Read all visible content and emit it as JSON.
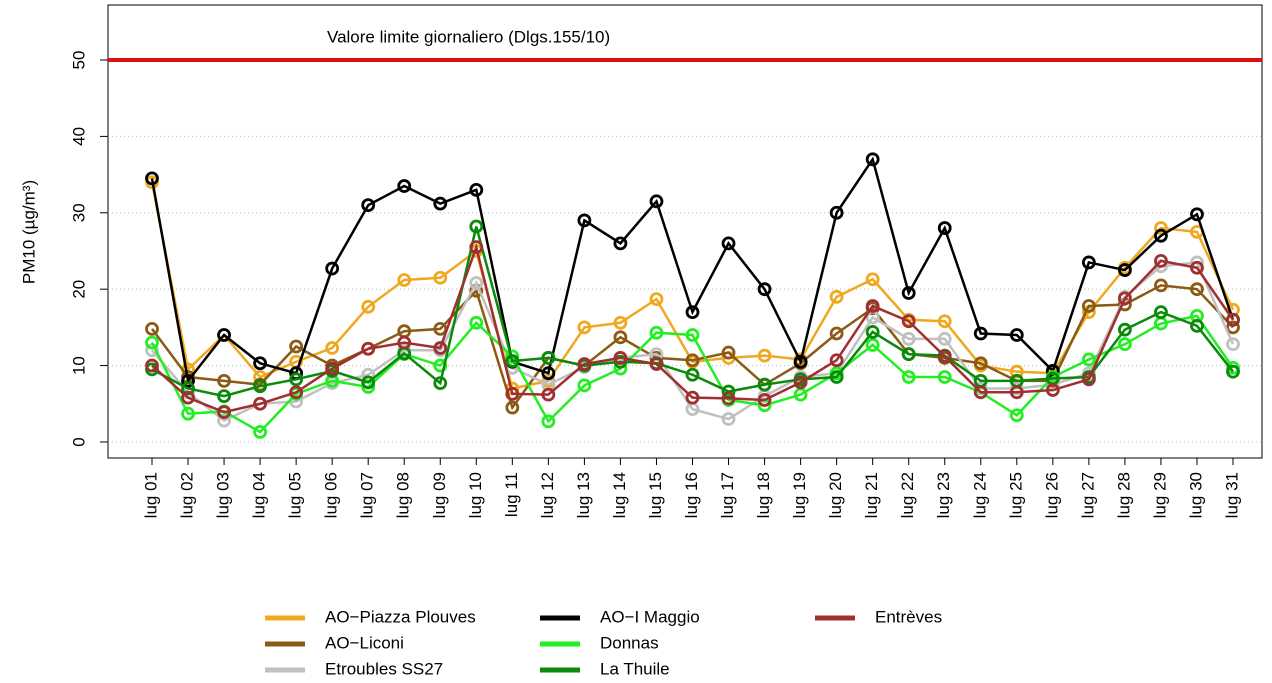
{
  "chart_data": {
    "type": "line",
    "ylabel": "PM10 (µg/m³)",
    "reference_line": {
      "value": 50,
      "label": "Valore limite giornaliero (Dlgs.155/10)",
      "color": "#dd1111"
    },
    "categories": [
      "lug 01",
      "lug 02",
      "lug 03",
      "lug 04",
      "lug 05",
      "lug 06",
      "lug 07",
      "lug 08",
      "lug 09",
      "lug 10",
      "lug 11",
      "lug 12",
      "lug 13",
      "lug 14",
      "lug 15",
      "lug 16",
      "lug 17",
      "lug 18",
      "lug 19",
      "lug 20",
      "lug 21",
      "lug 22",
      "lug 23",
      "lug 24",
      "lug 25",
      "lug 26",
      "lug 27",
      "lug 28",
      "lug 29",
      "lug 30",
      "lug 31"
    ],
    "ylim": [
      -2.1,
      57.2
    ],
    "yticks": [
      0,
      10,
      20,
      30,
      40,
      50
    ],
    "grid": true,
    "legend": "bottom",
    "series": [
      {
        "name": "AO−Piazza Plouves",
        "color": "#f0a820",
        "values": [
          34,
          9.5,
          14,
          8.5,
          10.5,
          12.3,
          17.7,
          21.2,
          21.5,
          25,
          7,
          8,
          15,
          15.6,
          18.7,
          10.5,
          11,
          11.3,
          10.8,
          19,
          21.3,
          16,
          15.8,
          10,
          9.2,
          9,
          17,
          22.8,
          28,
          27.5,
          17.3
        ]
      },
      {
        "name": "AO−Liconi",
        "color": "#8b5a14",
        "values": [
          14.8,
          8.5,
          8,
          7.5,
          12.5,
          10,
          12.2,
          14.5,
          14.8,
          19.8,
          4.5,
          11,
          10,
          13.7,
          11,
          10.7,
          11.7,
          7.5,
          10.3,
          14.2,
          17.5,
          11.5,
          11,
          10.3,
          8,
          8,
          17.8,
          18,
          20.5,
          20,
          15
        ]
      },
      {
        "name": "Etroubles SS27",
        "color": "#c0c0c0",
        "values": [
          12,
          6.5,
          2.8,
          5,
          5.3,
          7.7,
          8.8,
          12,
          12,
          20.8,
          9.7,
          7.5,
          9.8,
          11,
          11.5,
          4.3,
          3,
          6,
          8.5,
          9,
          16.3,
          13.5,
          13.5,
          7,
          7,
          7.5,
          9,
          19,
          23,
          23.5,
          12.8
        ]
      },
      {
        "name": "AO−I Maggio",
        "color": "#000000",
        "values": [
          34.5,
          8,
          14,
          10.3,
          9,
          22.7,
          31,
          33.5,
          31.2,
          33,
          10.5,
          9,
          29,
          26,
          31.5,
          17,
          26,
          20,
          10.5,
          30,
          37,
          19.5,
          28,
          14.2,
          14,
          9.3,
          23.5,
          22.5,
          27,
          29.8,
          16
        ]
      },
      {
        "name": "Donnas",
        "color": "#22ee22",
        "values": [
          13,
          3.7,
          4,
          1.3,
          6.3,
          8,
          7.2,
          11.5,
          10,
          15.6,
          11.2,
          2.7,
          7.4,
          9.6,
          14.3,
          14,
          5.5,
          4.8,
          6.2,
          9,
          12.7,
          8.5,
          8.5,
          6.5,
          3.5,
          8.5,
          10.8,
          12.8,
          15.5,
          16.5,
          9.7
        ]
      },
      {
        "name": "La Thuile",
        "color": "#0a8a0a",
        "values": [
          9.5,
          7,
          6,
          7.3,
          8.2,
          9.3,
          7.8,
          11.6,
          7.7,
          28.2,
          10.6,
          11,
          10,
          10.5,
          10.3,
          8.8,
          6.6,
          7.5,
          8.2,
          8.5,
          14.4,
          11.5,
          11.3,
          8,
          8,
          8.3,
          8.5,
          14.7,
          17,
          15.2,
          9.2
        ]
      },
      {
        "name": "Entrèves",
        "color": "#a03030",
        "values": [
          10,
          5.8,
          3.9,
          5,
          6.5,
          9.6,
          12.2,
          13,
          12.3,
          25.5,
          6.3,
          6.2,
          10.2,
          11,
          10.2,
          5.8,
          5.7,
          5.5,
          7.8,
          10.7,
          17.8,
          15.8,
          11.2,
          6.5,
          6.5,
          6.8,
          8.2,
          18.8,
          23.7,
          22.8,
          16
        ]
      }
    ]
  }
}
